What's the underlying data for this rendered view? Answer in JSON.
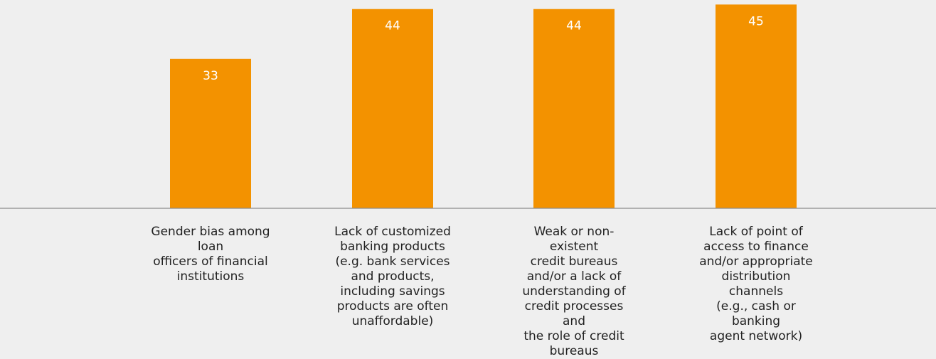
{
  "chart_data": {
    "type": "bar",
    "categories": [
      "Gender bias among loan\nofficers of financial\ninstitutions",
      "Lack of customized\nbanking products\n(e.g. bank services\nand products,\nincluding savings\nproducts are often\nunaffordable)",
      "Weak or non-existent\ncredit bureaus\nand/or a lack of\nunderstanding of\ncredit processes and\nthe role of credit\nbureaus",
      "Lack of point of\naccess to finance\nand/or appropriate\ndistribution channels\n(e.g., cash or banking\nagent network)"
    ],
    "values": [
      33,
      44,
      44,
      45
    ],
    "data_labels": [
      "33",
      "44",
      "44",
      "45"
    ],
    "ylim": [
      0,
      46
    ],
    "grid": false,
    "legend": "none",
    "colors": {
      "bar": "#f39200",
      "data_label": "#ffffff",
      "axis": "#8c8c8c",
      "background": "#efefef",
      "text": "#222222"
    }
  }
}
